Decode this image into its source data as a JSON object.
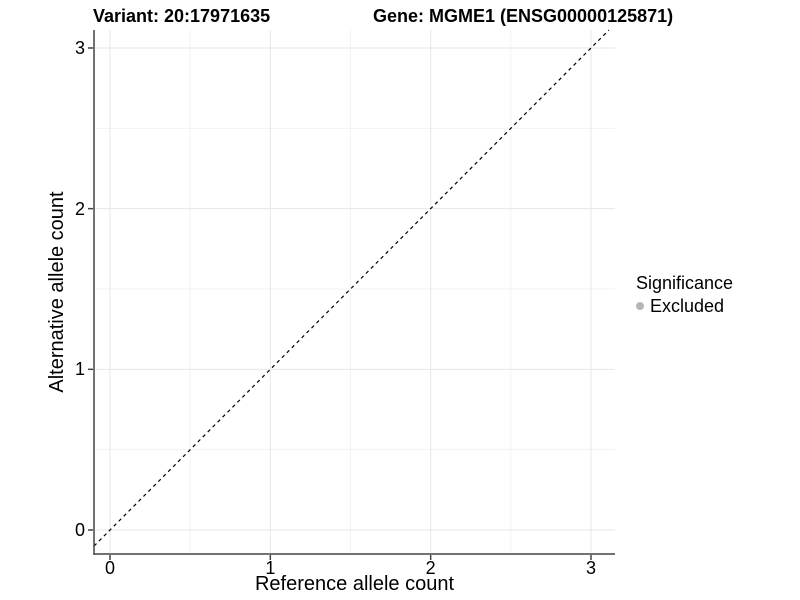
{
  "chart_data": {
    "type": "scatter",
    "title_left": "Variant: 20:17971635",
    "title_right": "Gene: MGME1 (ENSG00000125871)",
    "xlabel": "Reference allele count",
    "ylabel": "Alternative allele count",
    "xticks": [
      0,
      1,
      2,
      3
    ],
    "yticks": [
      0,
      1,
      2,
      3
    ],
    "x_minor": [
      0.5,
      1.5,
      2.5
    ],
    "y_minor": [
      0.5,
      1.5,
      2.5
    ],
    "xlim": [
      -0.1,
      3.15
    ],
    "ylim": [
      -0.15,
      3.11
    ],
    "grid": true,
    "points": [],
    "reference_line": {
      "type": "identity",
      "slope": 1,
      "intercept": 0,
      "style": "dashed",
      "color": "#000000"
    },
    "legend": {
      "position": "right",
      "title": "Significance",
      "items": [
        {
          "label": "Excluded",
          "marker": "circle",
          "color": "#b5b5b5"
        }
      ]
    },
    "colors": {
      "background": "#ffffff",
      "major_grid": "#e7e7e7",
      "minor_grid": "#f3f3f3",
      "axis_line": "#444444",
      "text": "#000000"
    }
  }
}
